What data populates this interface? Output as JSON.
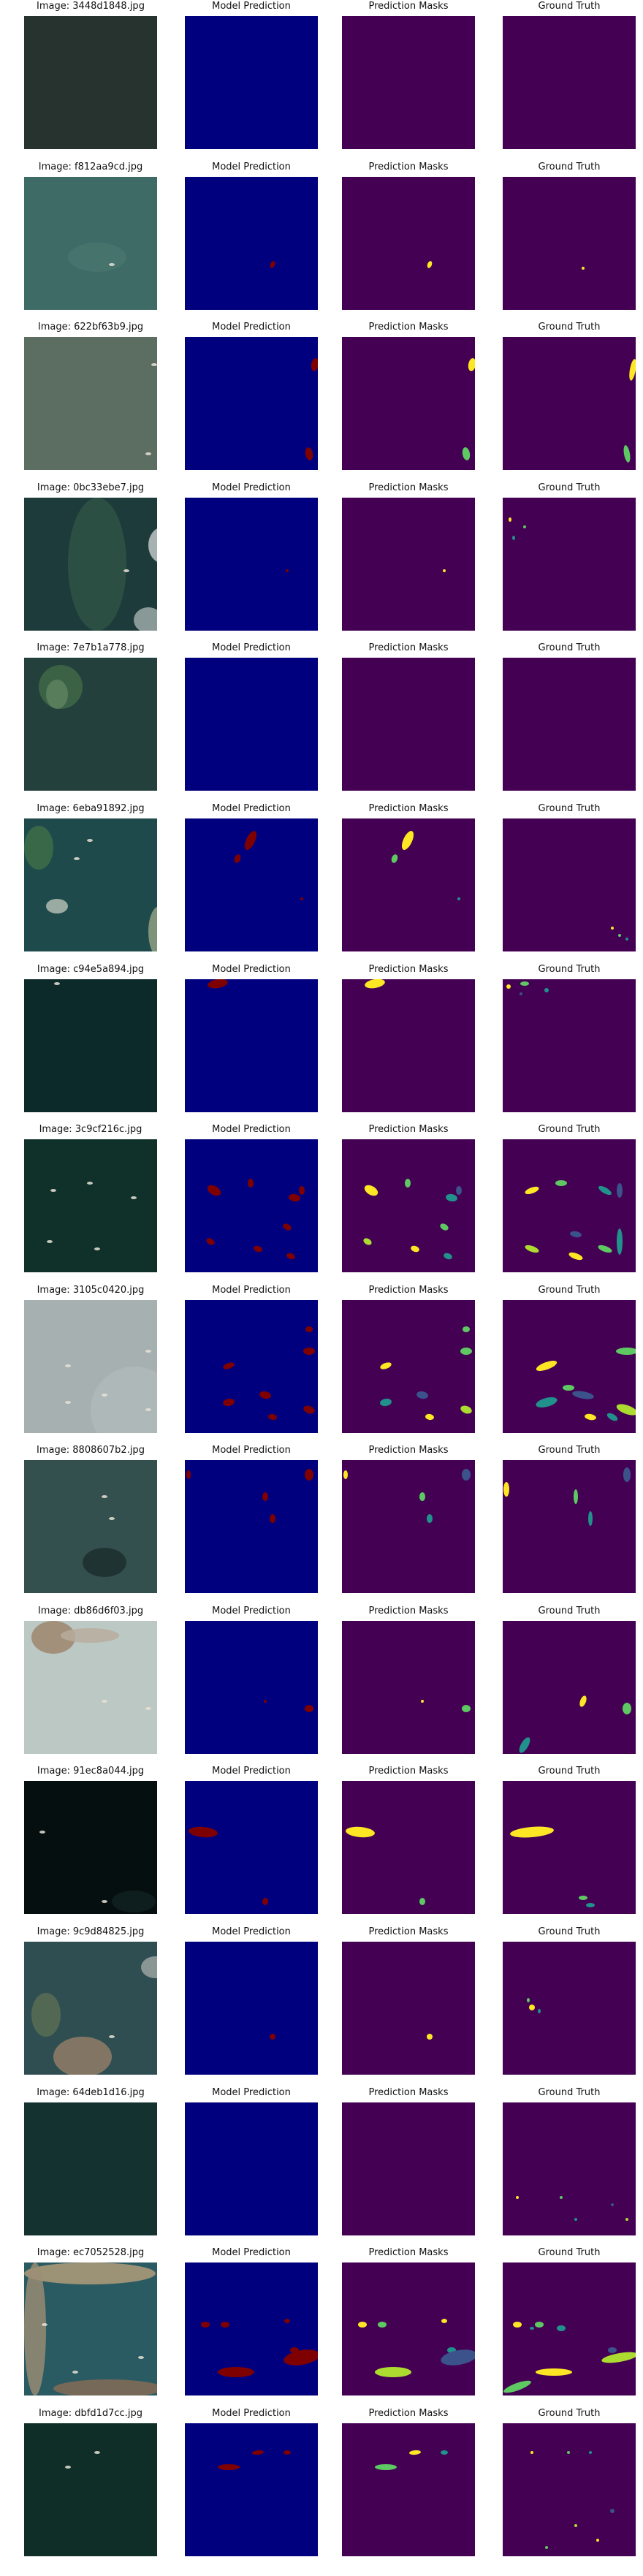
{
  "column_titles": [
    "Model Prediction",
    "Prediction Masks",
    "Ground Truth"
  ],
  "colors": {
    "prediction_background": "#00007f",
    "prediction_ship": "#7f0000",
    "mask_background": "#440154",
    "mask_palette": [
      "#fde725",
      "#5ec962",
      "#21918c",
      "#3b528b",
      "#addc30"
    ]
  },
  "rows": [
    {
      "image_label": "Image: 3448d1848.jpg",
      "scene": "open-sea-dark",
      "pred_ships": 0,
      "gt_ships": 0
    },
    {
      "image_label": "Image: f812aa9cd.jpg",
      "scene": "teal-sea",
      "pred_ships": 1,
      "gt_ships": 1
    },
    {
      "image_label": "Image: 622bf63b9.jpg",
      "scene": "grey-sea",
      "pred_ships": 2,
      "gt_ships": 2
    },
    {
      "image_label": "Image: 0bc33ebe7.jpg",
      "scene": "coastline-clouds",
      "pred_ships": 1,
      "gt_ships": 3
    },
    {
      "image_label": "Image: 7e7b1a778.jpg",
      "scene": "coastline-land",
      "pred_ships": 0,
      "gt_ships": 0
    },
    {
      "image_label": "Image: 6eba91892.jpg",
      "scene": "island-coast",
      "pred_ships": 3,
      "gt_ships": 3
    },
    {
      "image_label": "Image: c94e5a894.jpg",
      "scene": "dark-sea-ships",
      "pred_ships": 1,
      "gt_ships": 4
    },
    {
      "image_label": "Image: 3c9cf216c.jpg",
      "scene": "dark-sea-fleet",
      "pred_ships": 8,
      "gt_ships": 9
    },
    {
      "image_label": "Image: 3105c0420.jpg",
      "scene": "bright-sea-boats",
      "pred_ships": 7,
      "gt_ships": 8
    },
    {
      "image_label": "Image: 8808607b2.jpg",
      "scene": "sea-cloud-shadow",
      "pred_ships": 4,
      "gt_ships": 4
    },
    {
      "image_label": "Image: db86d6f03.jpg",
      "scene": "harbor-pale",
      "pred_ships": 2,
      "gt_ships": 3
    },
    {
      "image_label": "Image: 91ec8a044.jpg",
      "scene": "night-dock",
      "pred_ships": 2,
      "gt_ships": 3
    },
    {
      "image_label": "Image: 9c9d84825.jpg",
      "scene": "coastal-town",
      "pred_ships": 1,
      "gt_ships": 3
    },
    {
      "image_label": "Image: 64deb1d16.jpg",
      "scene": "deep-sea-speckled",
      "pred_ships": 0,
      "gt_ships": 5
    },
    {
      "image_label": "Image: ec7052528.jpg",
      "scene": "harbor-bay",
      "pred_ships": 6,
      "gt_ships": 8
    },
    {
      "image_label": "Image: dbfd1d7cc.jpg",
      "scene": "green-sea-wakes",
      "pred_ships": 3,
      "gt_ships": 7
    }
  ]
}
